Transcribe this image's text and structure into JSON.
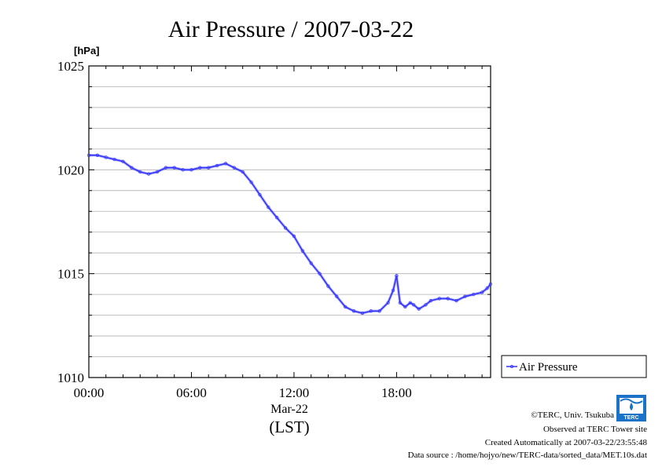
{
  "chart_data": {
    "type": "line",
    "title": "Air Pressure / 2007-03-22",
    "unit_label": "[hPa]",
    "xlabel_date": "Mar-22",
    "xlabel": "(LST)",
    "x_ticks": [
      {
        "hour": 0,
        "label": "00:00"
      },
      {
        "hour": 6,
        "label": "06:00"
      },
      {
        "hour": 12,
        "label": "12:00"
      },
      {
        "hour": 18,
        "label": "18:00"
      }
    ],
    "y_ticks": [
      1010,
      1015,
      1020,
      1025
    ],
    "ylim": [
      1010,
      1025
    ],
    "xlim_hours": [
      0,
      23.5
    ],
    "grid": true,
    "legend_position": "bottom-right outside",
    "series": [
      {
        "name": "Air Pressure",
        "color": "#3333ff",
        "x_hours": [
          0,
          0.5,
          1,
          1.5,
          2,
          2.5,
          3,
          3.5,
          4,
          4.5,
          5,
          5.5,
          6,
          6.5,
          7,
          7.5,
          8,
          8.5,
          9,
          9.5,
          10,
          10.5,
          11,
          11.5,
          12,
          12.5,
          13,
          13.5,
          14,
          14.5,
          15,
          15.5,
          16,
          16.5,
          17,
          17.5,
          17.8,
          18,
          18.2,
          18.5,
          18.8,
          19,
          19.3,
          19.7,
          20,
          20.5,
          21,
          21.5,
          22,
          22.5,
          23,
          23.3,
          23.5
        ],
        "values": [
          1020.7,
          1020.7,
          1020.6,
          1020.5,
          1020.4,
          1020.1,
          1019.9,
          1019.8,
          1019.9,
          1020.1,
          1020.1,
          1020.0,
          1020.0,
          1020.1,
          1020.1,
          1020.2,
          1020.3,
          1020.1,
          1019.9,
          1019.4,
          1018.8,
          1018.2,
          1017.7,
          1017.2,
          1016.8,
          1016.1,
          1015.5,
          1015.0,
          1014.4,
          1013.9,
          1013.4,
          1013.2,
          1013.1,
          1013.2,
          1013.2,
          1013.6,
          1014.2,
          1014.9,
          1013.6,
          1013.4,
          1013.6,
          1013.5,
          1013.3,
          1013.5,
          1013.7,
          1013.8,
          1013.8,
          1013.7,
          1013.9,
          1014.0,
          1014.1,
          1014.3,
          1014.5
        ]
      }
    ]
  },
  "footer": {
    "copyright": "©TERC, Univ. Tsukuba",
    "observed": "Observed at TERC Tower site",
    "created": "Created Automatically at 2007-03-22/23:55:48",
    "source": "Data source : /home/hojyo/new/TERC-data/sorted_data/MET.10s.dat",
    "logo_text": "TERC"
  }
}
